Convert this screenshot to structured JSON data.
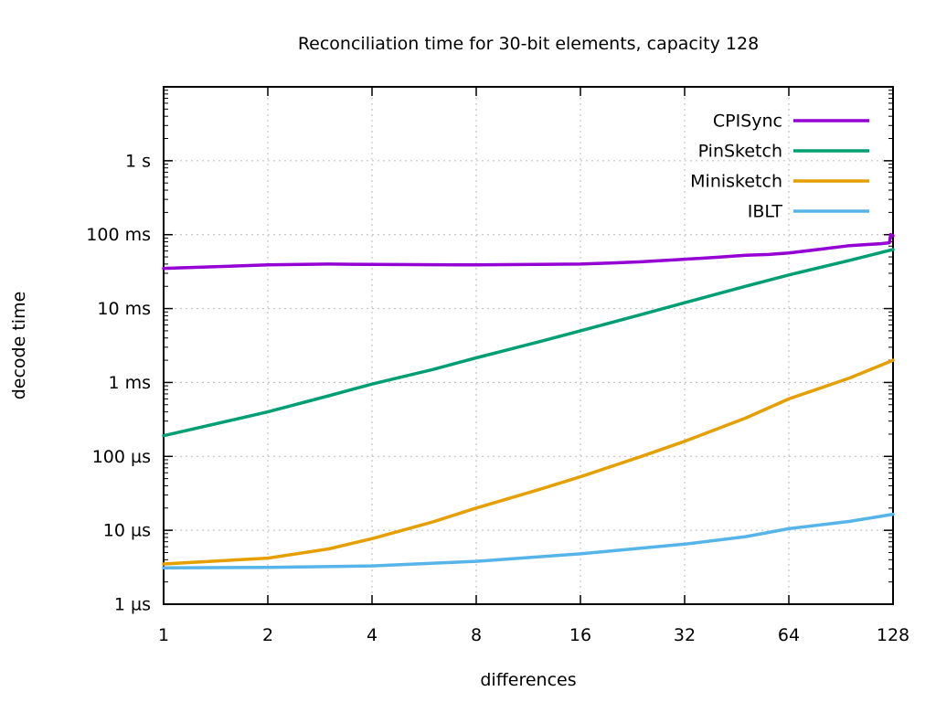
{
  "title": "Reconciliation time for 30-bit elements, capacity 128",
  "chart_data": {
    "type": "line",
    "title": "Reconciliation time for 30-bit elements, capacity 128",
    "xlabel": "differences",
    "ylabel": "decode time",
    "x_scale": "log2",
    "y_scale": "log10",
    "xlim": [
      1,
      128
    ],
    "ylim_us": [
      1,
      10000000
    ],
    "grid": true,
    "legend_position": "inside-top-right",
    "x_ticks": [
      1,
      2,
      4,
      8,
      16,
      32,
      64,
      128
    ],
    "y_ticks": [
      {
        "label": "1 µs",
        "us": 1
      },
      {
        "label": "10 µs",
        "us": 10
      },
      {
        "label": "100 µs",
        "us": 100
      },
      {
        "label": "1 ms",
        "us": 1000
      },
      {
        "label": "10 ms",
        "us": 10000
      },
      {
        "label": "100 ms",
        "us": 100000
      },
      {
        "label": "1 s",
        "us": 1000000
      }
    ],
    "series": [
      {
        "name": "CPISync",
        "color": "#9400d3",
        "points_us": [
          [
            1,
            35000
          ],
          [
            2,
            39000
          ],
          [
            3,
            40000
          ],
          [
            4,
            39500
          ],
          [
            6,
            39200
          ],
          [
            8,
            39000
          ],
          [
            12,
            39600
          ],
          [
            16,
            40000
          ],
          [
            20,
            41500
          ],
          [
            24,
            43000
          ],
          [
            32,
            46500
          ],
          [
            40,
            49500
          ],
          [
            48,
            52500
          ],
          [
            56,
            54000
          ],
          [
            64,
            56500
          ],
          [
            80,
            64000
          ],
          [
            96,
            71000
          ],
          [
            108,
            73500
          ],
          [
            118,
            75500
          ],
          [
            124,
            77500
          ],
          [
            125,
            78000
          ],
          [
            126,
            100000
          ],
          [
            128,
            97000
          ]
        ]
      },
      {
        "name": "PinSketch",
        "color": "#009e73",
        "points_us": [
          [
            1,
            190
          ],
          [
            2,
            400
          ],
          [
            3,
            660
          ],
          [
            4,
            950
          ],
          [
            6,
            1500
          ],
          [
            8,
            2150
          ],
          [
            12,
            3500
          ],
          [
            16,
            5000
          ],
          [
            24,
            8300
          ],
          [
            32,
            12000
          ],
          [
            48,
            20000
          ],
          [
            64,
            28500
          ],
          [
            96,
            45000
          ],
          [
            128,
            63000
          ]
        ]
      },
      {
        "name": "Minisketch",
        "color": "#e69f00",
        "points_us": [
          [
            1,
            3.5
          ],
          [
            2,
            4.2
          ],
          [
            3,
            5.6
          ],
          [
            4,
            7.7
          ],
          [
            6,
            13
          ],
          [
            8,
            20
          ],
          [
            12,
            35
          ],
          [
            16,
            53
          ],
          [
            24,
            100
          ],
          [
            32,
            160
          ],
          [
            48,
            330
          ],
          [
            64,
            600
          ],
          [
            96,
            1150
          ],
          [
            128,
            2000
          ]
        ]
      },
      {
        "name": "IBLT",
        "color": "#56b4e9",
        "points_us": [
          [
            1,
            3.1
          ],
          [
            2,
            3.15
          ],
          [
            4,
            3.3
          ],
          [
            8,
            3.8
          ],
          [
            16,
            4.8
          ],
          [
            32,
            6.5
          ],
          [
            48,
            8.2
          ],
          [
            64,
            10.5
          ],
          [
            96,
            13.2
          ],
          [
            128,
            16.5
          ]
        ]
      }
    ],
    "style": {
      "grid_color": "#bbbbbb",
      "border_color": "#000000",
      "line_width": 3.5,
      "background": "#ffffff"
    }
  }
}
